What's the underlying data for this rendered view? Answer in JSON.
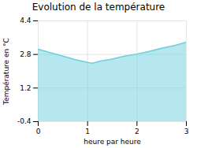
{
  "chart_data": {
    "type": "area",
    "title": "Evolution de la température",
    "xlabel": "heure par heure",
    "ylabel": "Température en °C",
    "x": [
      0,
      0.25,
      0.5,
      0.75,
      1.0,
      1.1,
      1.25,
      1.5,
      1.75,
      2.0,
      2.25,
      2.5,
      2.75,
      3.0
    ],
    "values": [
      3.05,
      2.88,
      2.72,
      2.55,
      2.42,
      2.38,
      2.48,
      2.58,
      2.72,
      2.82,
      2.95,
      3.1,
      3.22,
      3.38
    ],
    "xlim": [
      0,
      3
    ],
    "ylim": [
      -0.4,
      4.4
    ],
    "xticks": [
      0,
      1,
      2,
      3
    ],
    "yticks": [
      -0.4,
      1.2,
      2.8,
      4.4
    ],
    "color": "#6dcfdf",
    "grid": true
  }
}
